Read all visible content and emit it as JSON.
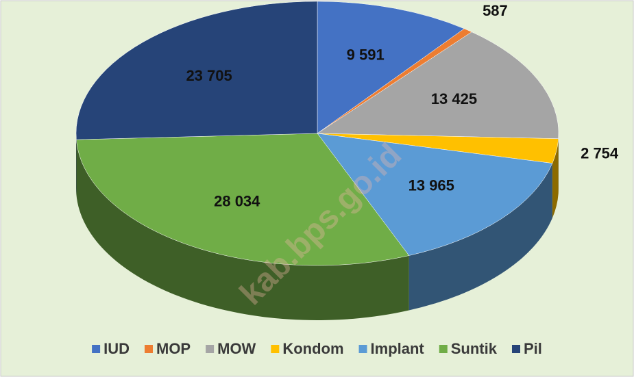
{
  "chart_data": {
    "type": "pie3d",
    "categories": [
      "IUD",
      "MOP",
      "MOW",
      "Kondom",
      "Implant",
      "Suntik",
      "Pil"
    ],
    "values": [
      9591,
      587,
      13425,
      2754,
      13965,
      28034,
      23705
    ],
    "value_labels": [
      "9 591",
      "587",
      "13 425",
      "2 754",
      "13 965",
      "28 034",
      "23 705"
    ],
    "colors": [
      "#4472c4",
      "#ed7d31",
      "#a5a5a5",
      "#ffc000",
      "#5b9bd5",
      "#70ad47",
      "#264478"
    ],
    "legend": "bottom",
    "watermark": "kab.bps.go.id"
  }
}
